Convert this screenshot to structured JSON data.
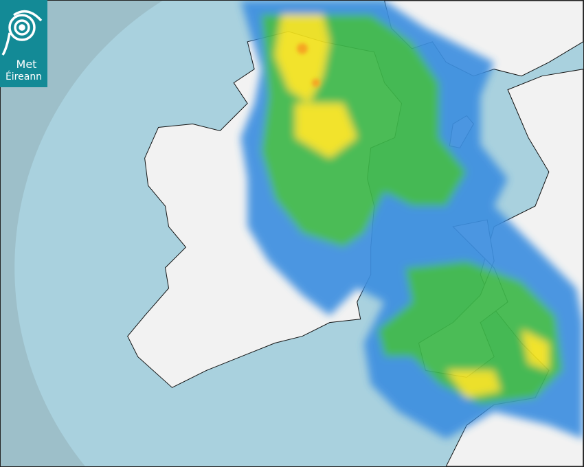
{
  "brand": {
    "name_line1": "Met",
    "name_line2": "Éireann",
    "color": "#138a96"
  },
  "map": {
    "type": "weather-radar",
    "colors": {
      "outside_coverage": "#9dbfc9",
      "sea": "#a9d1de",
      "land": "#f4f4f4",
      "rain_light": "#3d8fe0",
      "rain_moderate": "#3cb84a",
      "rain_heavy": "#f2e21a",
      "rain_very_heavy": "#f5a623"
    }
  }
}
